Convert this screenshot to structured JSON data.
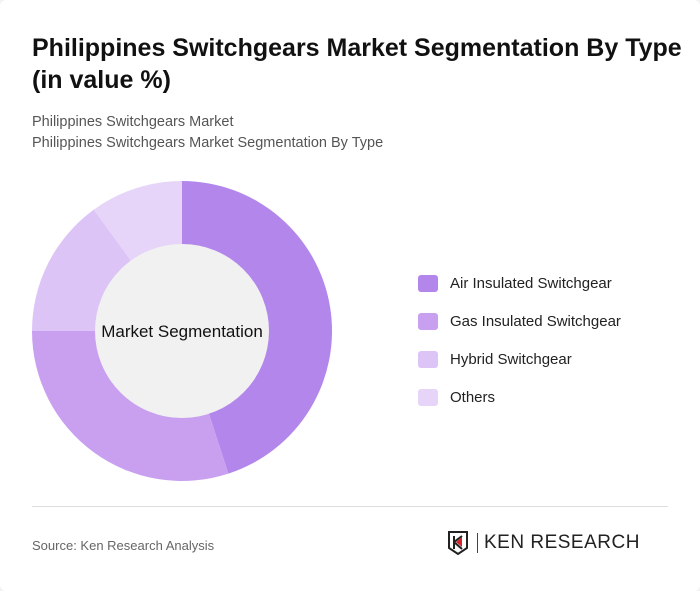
{
  "header": {
    "title": "Philippines Switchgears Market Segmentation By Type (in value %)",
    "breadcrumb": [
      "Philippines Switchgears Market",
      "Philippines Switchgears Market Segmentation By Type"
    ]
  },
  "chart_data": {
    "type": "pie",
    "donut": true,
    "center_label": "Market Segmentation",
    "categories": [
      "Air Insulated Switchgear",
      "Gas Insulated Switchgear",
      "Hybrid Switchgear",
      "Others"
    ],
    "values": [
      45,
      30,
      15,
      10
    ],
    "colors": [
      "#b386ec",
      "#c9a0f0",
      "#dcc4f6",
      "#e6d5f8"
    ],
    "legend_position": "right"
  },
  "footer": {
    "source": "Source: Ken Research Analysis",
    "logo_text": "KEN RESEARCH"
  }
}
